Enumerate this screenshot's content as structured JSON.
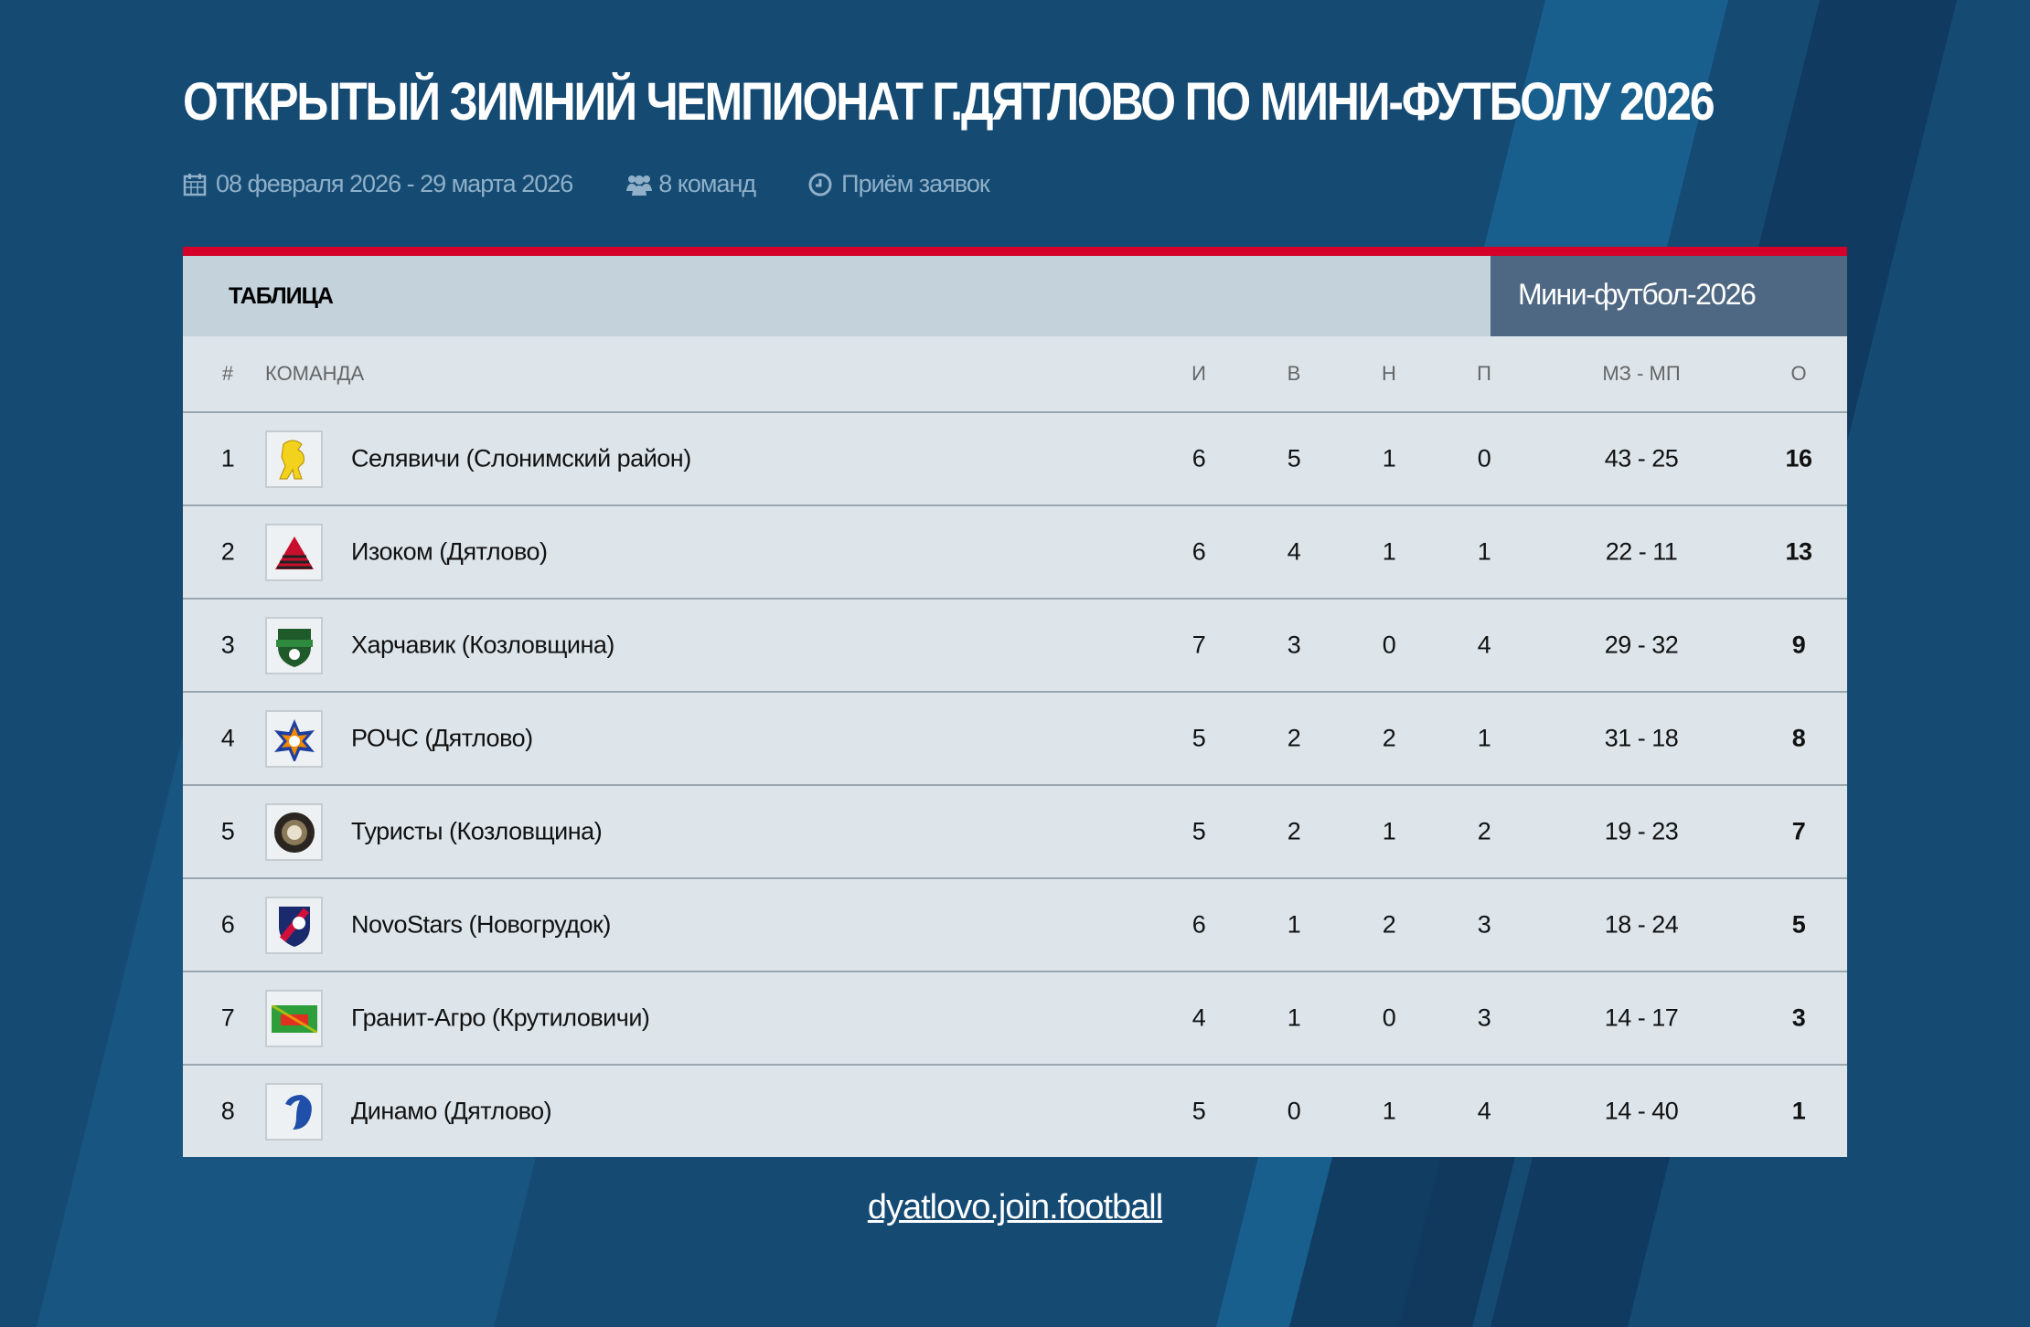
{
  "title": "ОТКРЫТЫЙ ЗИМНИЙ ЧЕМПИОНАТ Г.ДЯТЛОВО ПО МИНИ-ФУТБОЛУ 2026",
  "meta": {
    "dates": "08 февраля 2026 - 29 марта 2026",
    "teams": "8 команд",
    "status": "Приём заявок",
    "icons": [
      "calendar-icon",
      "users-icon",
      "clock-icon"
    ]
  },
  "table": {
    "label": "ТАБЛИЦА",
    "tab": "Мини-футбол-2026",
    "columns": {
      "pos": "#",
      "team": "КОМАНДА",
      "played": "И",
      "won": "В",
      "drawn": "Н",
      "lost": "П",
      "goals": "МЗ - МП",
      "points": "О"
    },
    "rows": [
      {
        "pos": "1",
        "team": "Селявичи (Слонимский район)",
        "played": "6",
        "won": "5",
        "drawn": "1",
        "lost": "0",
        "goals": "43 - 25",
        "points": "16"
      },
      {
        "pos": "2",
        "team": "Изоком (Дятлово)",
        "played": "6",
        "won": "4",
        "drawn": "1",
        "lost": "1",
        "goals": "22 - 11",
        "points": "13"
      },
      {
        "pos": "3",
        "team": "Харчавик (Козловщина)",
        "played": "7",
        "won": "3",
        "drawn": "0",
        "lost": "4",
        "goals": "29 - 32",
        "points": "9"
      },
      {
        "pos": "4",
        "team": "РОЧС (Дятлово)",
        "played": "5",
        "won": "2",
        "drawn": "2",
        "lost": "1",
        "goals": "31 - 18",
        "points": "8"
      },
      {
        "pos": "5",
        "team": "Туристы (Козловщина)",
        "played": "5",
        "won": "2",
        "drawn": "1",
        "lost": "2",
        "goals": "19 - 23",
        "points": "7"
      },
      {
        "pos": "6",
        "team": "NovoStars (Новогрудок)",
        "played": "6",
        "won": "1",
        "drawn": "2",
        "lost": "3",
        "goals": "18 - 24",
        "points": "5"
      },
      {
        "pos": "7",
        "team": "Гранит-Агро (Крутиловичи)",
        "played": "4",
        "won": "1",
        "drawn": "0",
        "lost": "3",
        "goals": "14 - 17",
        "points": "3"
      },
      {
        "pos": "8",
        "team": "Динамо (Дятлово)",
        "played": "5",
        "won": "0",
        "drawn": "1",
        "lost": "4",
        "goals": "14 - 40",
        "points": "1"
      }
    ]
  },
  "footer": {
    "link": "dyatlovo.join.football"
  },
  "colors": {
    "background": "#154a73",
    "accent": "#d4002a",
    "tab": "#4e6883"
  }
}
